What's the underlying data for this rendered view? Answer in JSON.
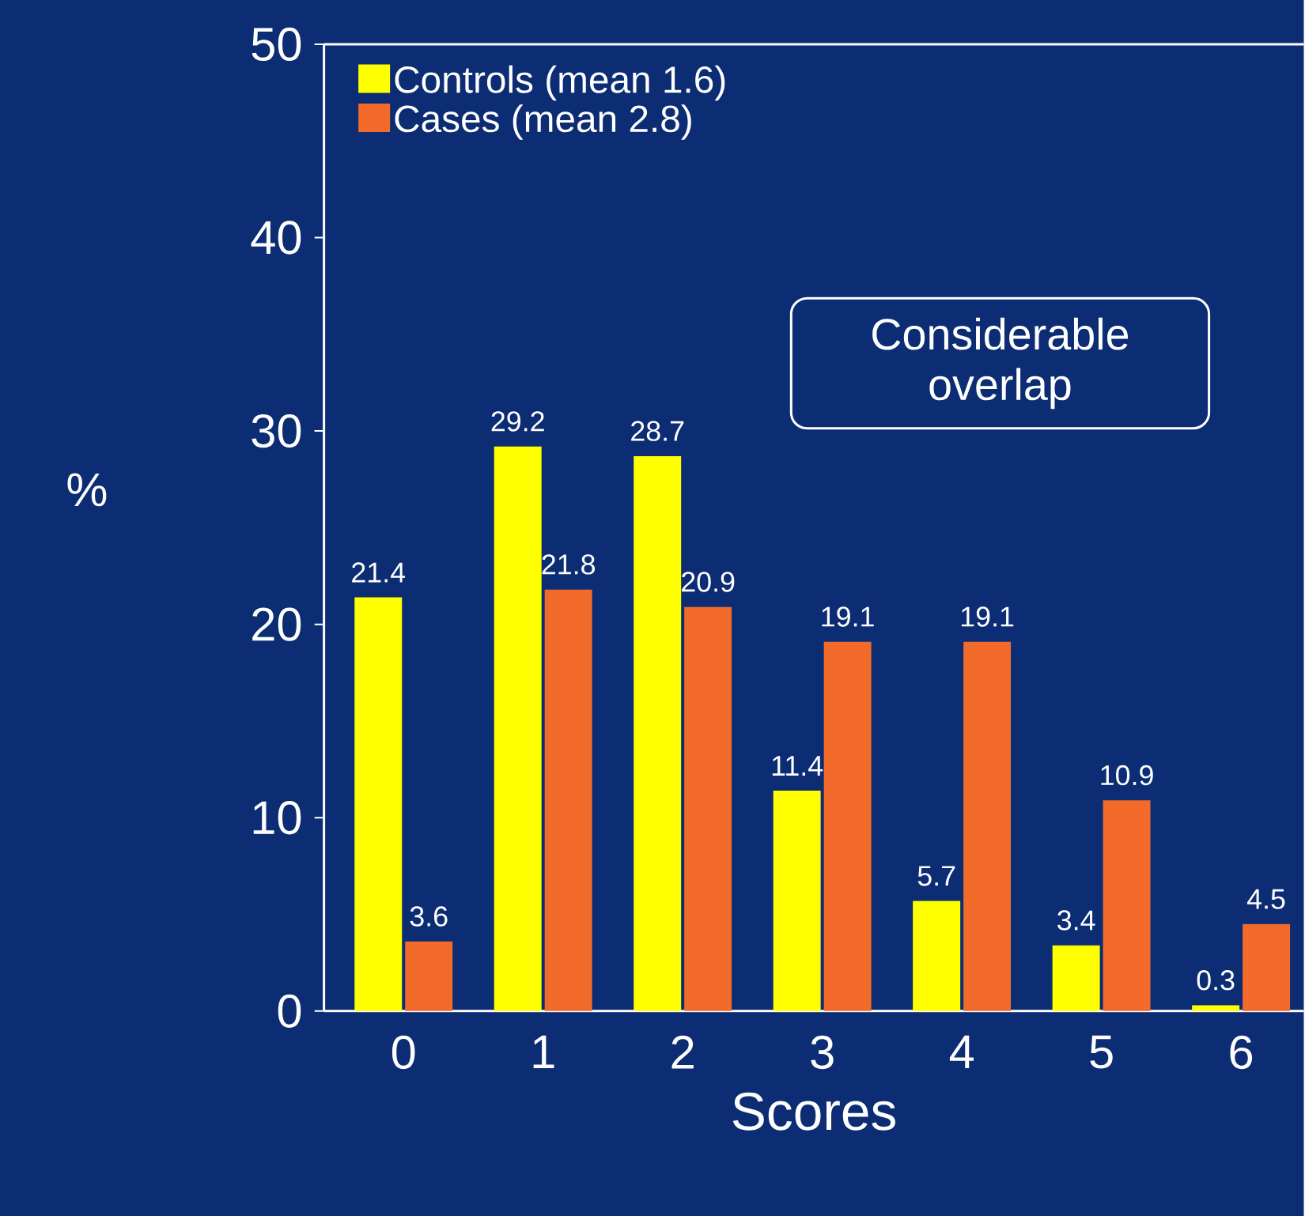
{
  "chart_data": {
    "type": "bar",
    "xlabel": "Scores",
    "ylabel": "%",
    "categories": [
      "0",
      "1",
      "2",
      "3",
      "4",
      "5",
      "6"
    ],
    "series": [
      {
        "name": "Controls (mean 1.6)",
        "color": "#ffff00",
        "values": [
          21.4,
          29.2,
          28.7,
          11.4,
          5.7,
          3.4,
          0.3
        ]
      },
      {
        "name": "Cases (mean 2.8)",
        "color": "#f26b2a",
        "values": [
          3.6,
          21.8,
          20.9,
          19.1,
          19.1,
          10.9,
          4.5
        ]
      }
    ],
    "ylim": [
      0,
      50
    ],
    "yticks": [
      0,
      10,
      20,
      30,
      40,
      50
    ],
    "data_labels": true,
    "legend": "top left",
    "annotations": [
      "Considerable overlap"
    ]
  }
}
